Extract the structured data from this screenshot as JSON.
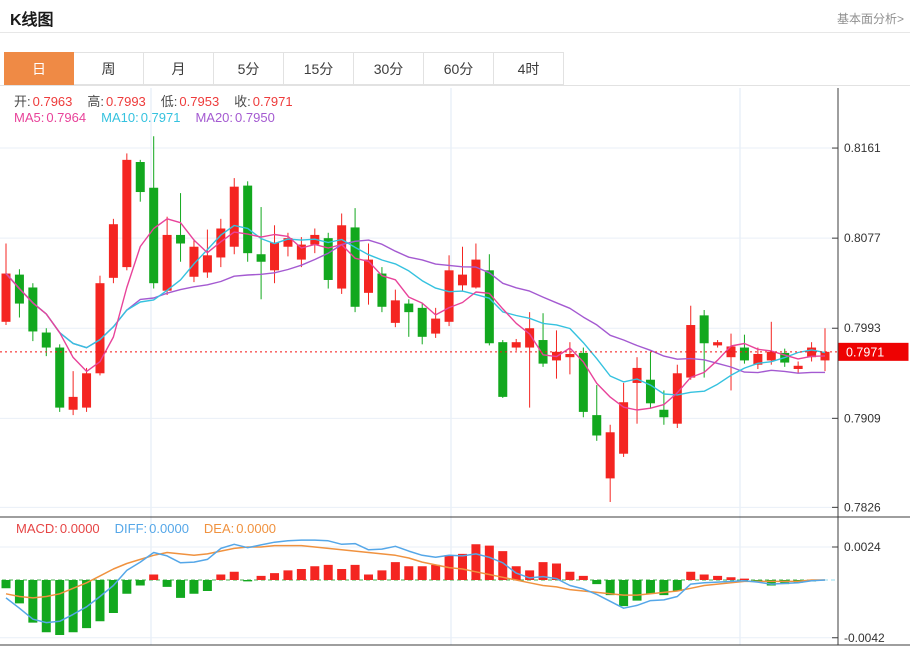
{
  "header": {
    "title": "K线图",
    "link": "基本面分析>"
  },
  "tabs": {
    "active": 0,
    "items": [
      "日",
      "周",
      "月",
      "5分",
      "15分",
      "30分",
      "60分",
      "4时"
    ]
  },
  "ohlc_row": [
    {
      "label": "开:",
      "value": "0.7963"
    },
    {
      "label": "高:",
      "value": "0.7993"
    },
    {
      "label": "低:",
      "value": "0.7953"
    },
    {
      "label": "收:",
      "value": "0.7971"
    }
  ],
  "ma_row": [
    {
      "label": "MA5:",
      "value": "0.7964",
      "color": "#e8439a"
    },
    {
      "label": "MA10:",
      "value": "0.7971",
      "color": "#35c2df"
    },
    {
      "label": "MA20:",
      "value": "0.7950",
      "color": "#a45ad1"
    }
  ],
  "macd_row": [
    {
      "label": "MACD:",
      "value": "0.0000",
      "color": "#e64545"
    },
    {
      "label": "DIFF:",
      "value": "0.0000",
      "color": "#55a7e8"
    },
    {
      "label": "DEA:",
      "value": "0.0000",
      "color": "#f0923f"
    }
  ],
  "main_axis": {
    "ticks": [
      "0.8161",
      "0.8077",
      "0.7993",
      "0.7909",
      "0.7826"
    ],
    "last_price": "0.7971"
  },
  "macd_axis": {
    "ticks": [
      "0.0024",
      "-0.0042"
    ]
  },
  "colors": {
    "up": "#f42521",
    "down": "#12a81e",
    "ma5": "#e8439a",
    "ma10": "#35c2df",
    "ma20": "#a45ad1",
    "diff": "#55a7e8",
    "dea": "#f0923f",
    "badge": "#ee0202",
    "price_line": "#f51515",
    "grid": "#e9eff7",
    "vgrid": "#dfeaf4",
    "axis": "#3c3c3c",
    "tick_text": "#333333",
    "zero_line": "#44b04c",
    "zero_line_ext": "#92dcf2",
    "tab_active": "#ef8a45"
  },
  "chart_data": [
    {
      "type": "candlestick",
      "title": "日K",
      "ylabelside": "right",
      "ylim": [
        0.7817,
        0.8217
      ],
      "yticks": [
        0.8161,
        0.8077,
        0.7993,
        0.7909,
        0.7826
      ],
      "last_close": 0.7971,
      "ma_windows": [
        5,
        10,
        20
      ],
      "candles_format": [
        "open",
        "high",
        "low",
        "close"
      ],
      "candles": [
        [
          0.7999,
          0.8072,
          0.7996,
          0.8044
        ],
        [
          0.8043,
          0.8048,
          0.8003,
          0.8016
        ],
        [
          0.8031,
          0.8035,
          0.7981,
          0.799
        ],
        [
          0.7989,
          0.7993,
          0.7967,
          0.7975
        ],
        [
          0.7975,
          0.7978,
          0.7915,
          0.7919
        ],
        [
          0.7917,
          0.7953,
          0.7912,
          0.7929
        ],
        [
          0.7919,
          0.7956,
          0.7915,
          0.7951
        ],
        [
          0.7951,
          0.8042,
          0.7949,
          0.8035
        ],
        [
          0.804,
          0.8095,
          0.8035,
          0.809
        ],
        [
          0.805,
          0.8156,
          0.8047,
          0.815
        ],
        [
          0.8148,
          0.815,
          0.8111,
          0.812
        ],
        [
          0.8124,
          0.8172,
          0.803,
          0.8035
        ],
        [
          0.8028,
          0.8097,
          0.8024,
          0.808
        ],
        [
          0.808,
          0.8119,
          0.8055,
          0.8072
        ],
        [
          0.8041,
          0.8076,
          0.8036,
          0.8069
        ],
        [
          0.8045,
          0.8085,
          0.804,
          0.8061
        ],
        [
          0.8059,
          0.8095,
          0.805,
          0.8086
        ],
        [
          0.8069,
          0.8133,
          0.8062,
          0.8125
        ],
        [
          0.8126,
          0.813,
          0.8055,
          0.8063
        ],
        [
          0.8062,
          0.8106,
          0.802,
          0.8055
        ],
        [
          0.8047,
          0.8089,
          0.8035,
          0.8073
        ],
        [
          0.8069,
          0.8082,
          0.806,
          0.8077
        ],
        [
          0.8057,
          0.8078,
          0.805,
          0.8071
        ],
        [
          0.8071,
          0.8086,
          0.8063,
          0.808
        ],
        [
          0.8077,
          0.8082,
          0.803,
          0.8038
        ],
        [
          0.803,
          0.81,
          0.8025,
          0.8089
        ],
        [
          0.8087,
          0.8105,
          0.8008,
          0.8013
        ],
        [
          0.8026,
          0.8072,
          0.8015,
          0.8057
        ],
        [
          0.8044,
          0.805,
          0.8008,
          0.8013
        ],
        [
          0.7998,
          0.8029,
          0.7994,
          0.8019
        ],
        [
          0.8016,
          0.802,
          0.7985,
          0.8008
        ],
        [
          0.8012,
          0.8016,
          0.7978,
          0.7985
        ],
        [
          0.7988,
          0.8012,
          0.7984,
          0.8002
        ],
        [
          0.7999,
          0.8061,
          0.7995,
          0.8047
        ],
        [
          0.8033,
          0.8069,
          0.8028,
          0.8043
        ],
        [
          0.8031,
          0.8072,
          0.803,
          0.8057
        ],
        [
          0.8047,
          0.8062,
          0.7977,
          0.7979
        ],
        [
          0.798,
          0.7982,
          0.7928,
          0.7929
        ],
        [
          0.7975,
          0.7983,
          0.7972,
          0.798
        ],
        [
          0.7975,
          0.8008,
          0.7919,
          0.7993
        ],
        [
          0.7982,
          0.8007,
          0.7957,
          0.796
        ],
        [
          0.7963,
          0.7991,
          0.7946,
          0.7971
        ],
        [
          0.7966,
          0.798,
          0.795,
          0.7969
        ],
        [
          0.797,
          0.7975,
          0.791,
          0.7915
        ],
        [
          0.7912,
          0.794,
          0.7888,
          0.7893
        ],
        [
          0.7853,
          0.7903,
          0.7831,
          0.7896
        ],
        [
          0.7876,
          0.7942,
          0.7873,
          0.7924
        ],
        [
          0.7942,
          0.7966,
          0.7904,
          0.7956
        ],
        [
          0.7945,
          0.7971,
          0.7918,
          0.7923
        ],
        [
          0.7917,
          0.7935,
          0.7903,
          0.791
        ],
        [
          0.7904,
          0.7959,
          0.79,
          0.7951
        ],
        [
          0.7947,
          0.8014,
          0.7945,
          0.7996
        ],
        [
          0.8005,
          0.801,
          0.7947,
          0.7979
        ],
        [
          0.7977,
          0.7982,
          0.7975,
          0.798
        ],
        [
          0.7966,
          0.7988,
          0.7935,
          0.7976
        ],
        [
          0.7975,
          0.7987,
          0.796,
          0.7963
        ],
        [
          0.7959,
          0.7975,
          0.7955,
          0.7969
        ],
        [
          0.7963,
          0.7999,
          0.7959,
          0.7971
        ],
        [
          0.797,
          0.7974,
          0.7957,
          0.7961
        ],
        [
          0.7955,
          0.7962,
          0.7951,
          0.7958
        ],
        [
          0.7966,
          0.798,
          0.7962,
          0.7975
        ],
        [
          0.7963,
          0.7993,
          0.7953,
          0.7971
        ]
      ]
    },
    {
      "type": "bar",
      "title": "MACD",
      "yticks": [
        0.0024,
        -0.0042
      ],
      "hist": [
        -0.0006,
        -0.0017,
        -0.0031,
        -0.0038,
        -0.004,
        -0.0038,
        -0.0035,
        -0.003,
        -0.0024,
        -0.001,
        -0.0004,
        0.0004,
        -0.0005,
        -0.0013,
        -0.001,
        -0.0008,
        0.0004,
        0.0006,
        -0.0001,
        0.0003,
        0.0005,
        0.0007,
        0.0008,
        0.001,
        0.0011,
        0.0008,
        0.0011,
        0.0004,
        0.0007,
        0.0013,
        0.001,
        0.001,
        0.0011,
        0.0018,
        0.0019,
        0.0026,
        0.0025,
        0.0021,
        0.001,
        0.0007,
        0.0013,
        0.0012,
        0.0006,
        0.0003,
        -0.0003,
        -0.0011,
        -0.0019,
        -0.0015,
        -0.001,
        -0.0011,
        -0.0008,
        0.0006,
        0.0004,
        0.0003,
        0.0002,
        0.0001,
        -0.0001,
        -0.0004,
        -0.0003,
        -0.0002,
        -0.0001,
        0.0
      ],
      "diff": [
        -0.0013,
        -0.00205,
        -0.00285,
        -0.0031,
        -0.003,
        -0.0025,
        -0.00195,
        -0.0012,
        -0.0004,
        0.0007,
        0.0013,
        0.002,
        0.00175,
        0.00125,
        0.0013,
        0.0015,
        0.0023,
        0.0026,
        0.00235,
        0.00255,
        0.00275,
        0.00285,
        0.0029,
        0.0029,
        0.00285,
        0.0026,
        0.00265,
        0.0022,
        0.00225,
        0.00245,
        0.0021,
        0.0018,
        0.00165,
        0.0018,
        0.00175,
        0.0019,
        0.00165,
        0.00125,
        0.0005,
        0.00015,
        0.00025,
        0.0001,
        -0.0004,
        -0.00065,
        -0.00105,
        -0.00155,
        -0.00205,
        -0.00185,
        -0.0015,
        -0.00145,
        -0.0012,
        -0.0003,
        -0.0002,
        -0.00015,
        -0.0001,
        -5e-05,
        -0.00015,
        -0.0003,
        -0.00025,
        -0.0002,
        -5e-05,
        0
      ],
      "dea": [
        -0.001,
        -0.0012,
        -0.0013,
        -0.0012,
        -0.001,
        -0.0006,
        -0.0002,
        0.0003,
        0.0008,
        0.0012,
        0.0015,
        0.0018,
        0.002,
        0.0019,
        0.0018,
        0.0019,
        0.0021,
        0.0023,
        0.0024,
        0.0024,
        0.0025,
        0.0025,
        0.0025,
        0.0024,
        0.0023,
        0.0022,
        0.0021,
        0.002,
        0.0019,
        0.0018,
        0.0016,
        0.0013,
        0.0011,
        0.0009,
        0.0008,
        0.0006,
        0.0004,
        0.0002,
        0.0,
        -0.0002,
        -0.0004,
        -0.0005,
        -0.0007,
        -0.0008,
        -0.0009,
        -0.001,
        -0.0011,
        -0.0011,
        -0.001,
        -0.0009,
        -0.0008,
        -0.0006,
        -0.0004,
        -0.0003,
        -0.0002,
        -0.0001,
        -0.0001,
        -0.0001,
        -0.0001,
        -0.0001,
        0.0,
        0.0
      ]
    }
  ]
}
